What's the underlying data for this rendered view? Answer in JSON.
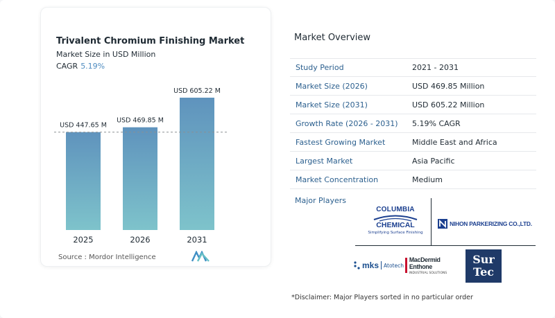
{
  "chart_data": {
    "type": "bar",
    "title": "Trivalent Chromium Finishing Market",
    "subtitle": "Market Size in USD Million",
    "cagr_label": "CAGR",
    "cagr_value": "5.19%",
    "categories": [
      "2025",
      "2026",
      "2031"
    ],
    "values": [
      447.65,
      469.85,
      605.22
    ],
    "data_labels": [
      "USD 447.65 M",
      "USD 469.85 M",
      "USD 605.22 M"
    ],
    "reference_line": 447.65,
    "ylim": [
      0,
      640
    ],
    "colors": {
      "bar_top": "#5f93bd",
      "bar_bottom": "#7ec3cb",
      "reference": "#8a8f94"
    }
  },
  "source_text": "Source :  Mordor Intelligence",
  "overview": {
    "title": "Market Overview",
    "rows": [
      {
        "key": "Study Period",
        "value": "2021 - 2031"
      },
      {
        "key": "Market Size (2026)",
        "value": "USD 469.85 Million"
      },
      {
        "key": "Market Size (2031)",
        "value": "USD 605.22 Million"
      },
      {
        "key": "Growth Rate (2026 - 2031)",
        "value": "5.19% CAGR"
      },
      {
        "key": "Fastest Growing Market",
        "value": "Middle East and Africa"
      },
      {
        "key": "Largest Market",
        "value": "Asia Pacific"
      },
      {
        "key": "Market Concentration",
        "value": "Medium"
      }
    ]
  },
  "players": {
    "label": "Major Players",
    "columbia": {
      "line1": "COLUMBIA",
      "line2": "CHEMICAL",
      "tagline": "Simplifying Surface Finishing"
    },
    "nihon": {
      "text": "NIHON PARKERIZING CO.,LTD."
    },
    "mks": {
      "brand": "mks",
      "sub": "Atotech"
    },
    "macdermid": {
      "line1": "MacDermid Enthone",
      "line2": "INDUSTRIAL SOLUTIONS"
    },
    "surtec": {
      "line1": "Sur",
      "line2": "Tec"
    }
  },
  "disclaimer": "*Disclaimer: Major Players sorted in no particular order"
}
